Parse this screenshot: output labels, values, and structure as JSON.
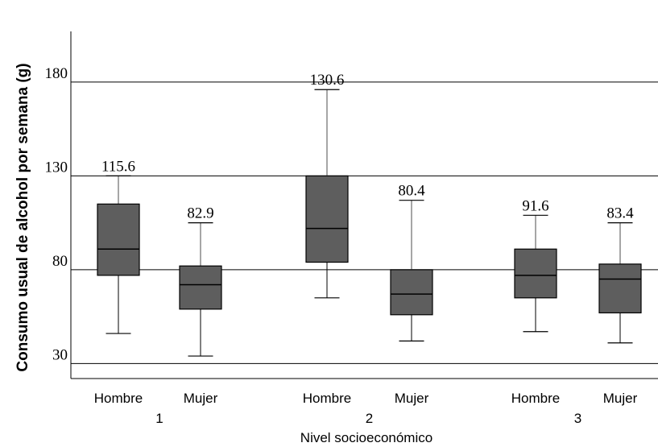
{
  "chart_data": {
    "type": "boxplot",
    "ylabel": "Consumo usual de alcohol por semana (g)",
    "xlabel": "Nivel socioeconómico",
    "ylim": [
      22,
      207
    ],
    "yticks": [
      30,
      80,
      130,
      180
    ],
    "grid": "horizontal",
    "groups": [
      "1",
      "2",
      "3"
    ],
    "categories": [
      "Hombre",
      "Mujer",
      "Hombre",
      "Mujer",
      "Hombre",
      "Mujer"
    ],
    "series": [
      {
        "group": "1",
        "category": "Hombre",
        "min": 46,
        "q1": 77,
        "median": 91,
        "q3": 115,
        "max": 130,
        "annotation": "115.6"
      },
      {
        "group": "1",
        "category": "Mujer",
        "min": 34,
        "q1": 59,
        "median": 72,
        "q3": 82,
        "max": 105,
        "annotation": "82.9"
      },
      {
        "group": "2",
        "category": "Hombre",
        "min": 65,
        "q1": 84,
        "median": 102,
        "q3": 130,
        "max": 176,
        "annotation": "130.6"
      },
      {
        "group": "2",
        "category": "Mujer",
        "min": 42,
        "q1": 56,
        "median": 67,
        "q3": 80,
        "max": 117,
        "annotation": "80.4"
      },
      {
        "group": "3",
        "category": "Hombre",
        "min": 47,
        "q1": 65,
        "median": 77,
        "q3": 91,
        "max": 109,
        "annotation": "91.6"
      },
      {
        "group": "3",
        "category": "Mujer",
        "min": 41,
        "q1": 57,
        "median": 75,
        "q3": 83,
        "max": 105,
        "annotation": "83.4"
      }
    ],
    "colors": {
      "box": "#5e5e5e",
      "upper_whisker": "#a6a6a6",
      "lower_whisker": "#000000",
      "grid": "#000000"
    }
  }
}
